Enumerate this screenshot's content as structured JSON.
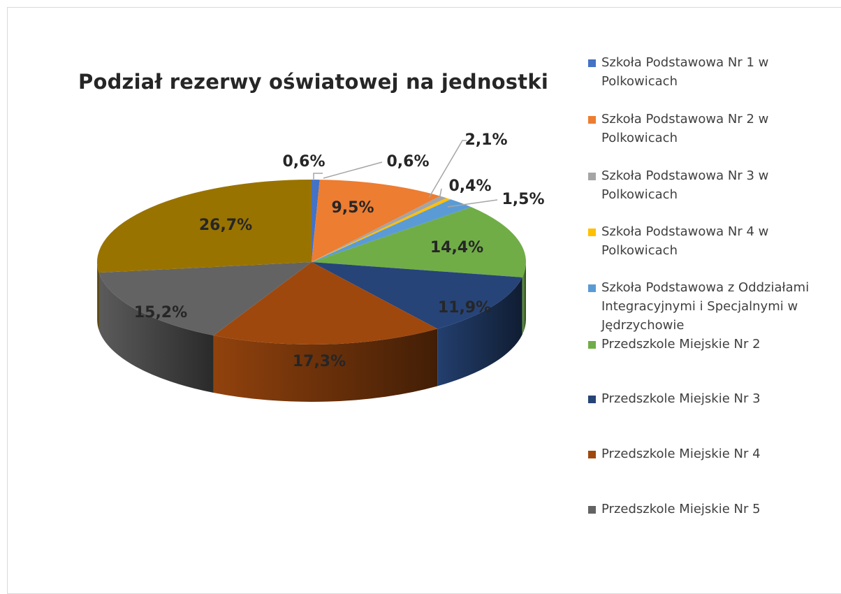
{
  "chart_data": {
    "type": "pie",
    "title": "Podział rezerwy oświatowej na jednostki",
    "legend_position": "right",
    "slices": [
      {
        "name": "Szkoła Podstawowa Nr 1 w Polkowicach",
        "value": 0.6,
        "label": "0,6%",
        "color": "#4472c4"
      },
      {
        "name": "Szkoła Podstawowa Nr 2 w Polkowicach",
        "value": 9.5,
        "label": "9,5%",
        "color": "#ed7d31"
      },
      {
        "name": "Szkoła Podstawowa Nr 3 w Polkowicach",
        "value": 0.6,
        "label": "0,6%",
        "color": "#a5a5a5"
      },
      {
        "name": "Szkoła Podstawowa Nr 4 w Polkowicach",
        "value": 0.4,
        "label": "0,4%",
        "color": "#ffc000"
      },
      {
        "name": "Szkoła Podstawowa z Oddziałami Integracyjnymi i Specjalnymi w Jędrzychowie",
        "value": 2.1,
        "label": "2,1%",
        "color": "#5b9bd5"
      },
      {
        "name": "Przedszkole Miejskie Nr 2",
        "value": 14.4,
        "label": "14,4%",
        "color": "#70ad47"
      },
      {
        "name": "Przedszkole Miejskie Nr 3",
        "value": 11.9,
        "label": "11,9%",
        "color": "#264478"
      },
      {
        "name": "Przedszkole Miejskie Nr 4",
        "value": 17.3,
        "label": "17,3%",
        "color": "#9e480e"
      },
      {
        "name": "Przedszkole Miejskie Nr 5",
        "value": 15.2,
        "label": "15,2%",
        "color": "#636363"
      },
      {
        "name": "",
        "value": 26.7,
        "label": "26,7%",
        "color": "#997300"
      }
    ],
    "extra_label": "1,5%"
  }
}
